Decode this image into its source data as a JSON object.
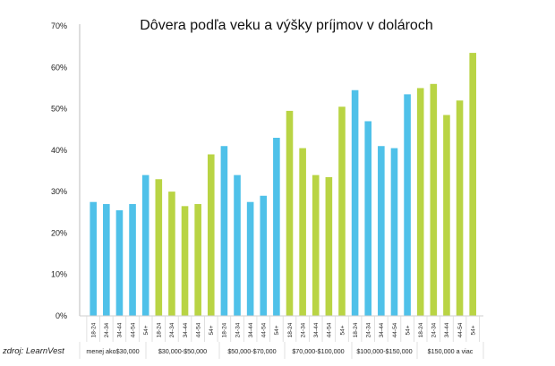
{
  "chart_data": {
    "type": "bar",
    "title": "Dôvera podľa veku a výšky príjmov v dolároch",
    "source": "zdroj: LearnVest",
    "ylim": [
      0,
      70
    ],
    "yticks": [
      "0%",
      "10%",
      "20%",
      "30%",
      "40%",
      "50%",
      "60%",
      "70%"
    ],
    "age_labels": [
      "18-24",
      "24-34",
      "34-44",
      "44-54",
      "54+"
    ],
    "groups": [
      {
        "label": "menej ako$30,000",
        "color": "#4fc1e9",
        "values": [
          27.5,
          27,
          25.5,
          27,
          34
        ]
      },
      {
        "label": "$30,000-$50,000",
        "color": "#b9d444",
        "values": [
          33,
          30,
          26.5,
          27,
          39
        ]
      },
      {
        "label": "$50,000-$70,000",
        "color": "#4fc1e9",
        "values": [
          41,
          34,
          27.5,
          29,
          43
        ]
      },
      {
        "label": "$70,000-$100,000",
        "color": "#b9d444",
        "values": [
          49.5,
          40.5,
          34,
          33.5,
          50.5
        ]
      },
      {
        "label": "$100,000-$150,000",
        "color": "#4fc1e9",
        "values": [
          54.5,
          47,
          41,
          40.5,
          53.5
        ]
      },
      {
        "label": "$150,000 a viac",
        "color": "#b9d444",
        "values": [
          55,
          56,
          48.5,
          52,
          63.5
        ]
      }
    ],
    "grid": false,
    "legend": "none"
  }
}
